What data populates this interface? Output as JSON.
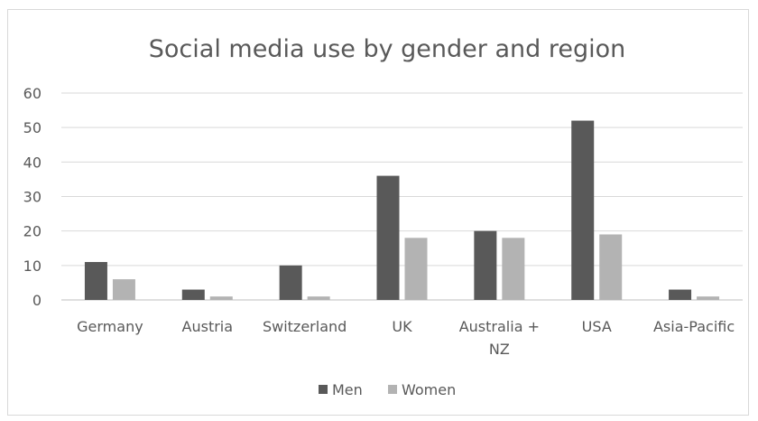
{
  "chart_data": {
    "type": "bar",
    "title": "Social media use by gender and region",
    "categories": [
      "Germany",
      "Austria",
      "Switzerland",
      "UK",
      "Australia + NZ",
      "USA",
      "Asia-Pacific"
    ],
    "category_lines": [
      [
        "Germany"
      ],
      [
        "Austria"
      ],
      [
        "Switzerland"
      ],
      [
        "UK"
      ],
      [
        "Australia +",
        "NZ"
      ],
      [
        "USA"
      ],
      [
        "Asia-Pacific"
      ]
    ],
    "series": [
      {
        "name": "Men",
        "color": "#595959",
        "values": [
          11,
          3,
          10,
          36,
          20,
          52,
          3
        ]
      },
      {
        "name": "Women",
        "color": "#b3b3b3",
        "values": [
          6,
          1,
          1,
          18,
          18,
          19,
          1
        ]
      }
    ],
    "ylim": [
      0,
      60
    ],
    "yticks": [
      "0",
      "10",
      "20",
      "30",
      "40",
      "50",
      "60"
    ],
    "grid": true,
    "legend": "bottom"
  }
}
